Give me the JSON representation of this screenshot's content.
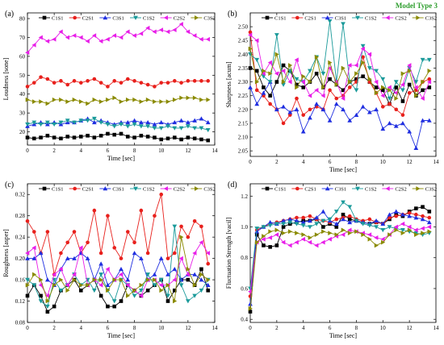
{
  "figure": {
    "annotation": "Model Type 3",
    "annotation_color": "#2e9e2e"
  },
  "series_styles": [
    {
      "name": "C1S1",
      "color": "#000000",
      "marker": "square"
    },
    {
      "name": "C2S1",
      "color": "#e8201c",
      "marker": "circle"
    },
    {
      "name": "C3S1",
      "color": "#1f2ee0",
      "marker": "triangle-up"
    },
    {
      "name": "C1S2",
      "color": "#1a9a9a",
      "marker": "triangle-down"
    },
    {
      "name": "C2S2",
      "color": "#e81ee8",
      "marker": "triangle-left"
    },
    {
      "name": "C3S2",
      "color": "#8a8a00",
      "marker": "triangle-right"
    }
  ],
  "chart_data": [
    {
      "type": "line",
      "panel": "(a)",
      "xlabel": "Time [sec]",
      "ylabel": "Loudness [sone]",
      "xlim": [
        0,
        14
      ],
      "ylim": [
        13,
        83
      ],
      "xticks": [
        0,
        2,
        4,
        6,
        8,
        10,
        12,
        14
      ],
      "yticks": [
        20,
        30,
        40,
        50,
        60,
        70,
        80
      ],
      "legend": "top",
      "x": [
        0,
        0.5,
        1,
        1.5,
        2,
        2.5,
        3,
        3.5,
        4,
        4.5,
        5,
        5.5,
        6,
        6.5,
        7,
        7.5,
        8,
        8.5,
        9,
        9.5,
        10,
        10.5,
        11,
        11.5,
        12,
        12.5,
        13,
        13.5
      ],
      "series": [
        {
          "name": "C1S1",
          "values": [
            17,
            16.5,
            17,
            18,
            17,
            16.5,
            17.5,
            17,
            17.5,
            18,
            17,
            18,
            19,
            18.5,
            19,
            17.5,
            17,
            18,
            17.5,
            17,
            16,
            16.5,
            17,
            16,
            17,
            16.5,
            16,
            15.5
          ]
        },
        {
          "name": "C2S1",
          "values": [
            44,
            46,
            49,
            48,
            46,
            47,
            45,
            47,
            46,
            47,
            48,
            46,
            44,
            47,
            46,
            48,
            47,
            46,
            45,
            44,
            46,
            46,
            47,
            46,
            47,
            47,
            47,
            47
          ]
        },
        {
          "name": "C3S1",
          "values": [
            23,
            24,
            25,
            24,
            25,
            24,
            25,
            25,
            26,
            27,
            25,
            26,
            25,
            24,
            25,
            25,
            26,
            25,
            25,
            24,
            25,
            24,
            25,
            26,
            25,
            26,
            27,
            25
          ]
        },
        {
          "name": "C1S2",
          "values": [
            24,
            25,
            24,
            25,
            24,
            25,
            26,
            25,
            26,
            26,
            27,
            25,
            24,
            23,
            24,
            23,
            24,
            23,
            23,
            22,
            22,
            23,
            22,
            22,
            23,
            22,
            22,
            21
          ]
        },
        {
          "name": "C2S2",
          "values": [
            62,
            66,
            70,
            68,
            69,
            73,
            70,
            71,
            70,
            68,
            71,
            68,
            69,
            71,
            70,
            73,
            71,
            72,
            75,
            73,
            74,
            73,
            74,
            77,
            73,
            71,
            69,
            69
          ]
        },
        {
          "name": "C3S2",
          "values": [
            37,
            36,
            36,
            35,
            37,
            37,
            36,
            37,
            36,
            35,
            37,
            36,
            37,
            38,
            36,
            37,
            37,
            36,
            37,
            36,
            36,
            36,
            37,
            38,
            38,
            38,
            37,
            37
          ]
        }
      ]
    },
    {
      "type": "line",
      "panel": "(b)",
      "xlabel": "Time [sec]",
      "ylabel": "Sharpness [acum]",
      "xlim": [
        0,
        14
      ],
      "ylim": [
        2.03,
        2.55
      ],
      "xticks": [
        0,
        2,
        4,
        6,
        8,
        10,
        12,
        14
      ],
      "yticks": [
        2.05,
        2.1,
        2.15,
        2.2,
        2.25,
        2.3,
        2.35,
        2.4,
        2.45,
        2.5
      ],
      "legend": "top",
      "x": [
        0,
        0.5,
        1,
        1.5,
        2,
        2.5,
        3,
        3.5,
        4,
        4.5,
        5,
        5.5,
        6,
        6.5,
        7,
        7.5,
        8,
        8.5,
        9,
        9.5,
        10,
        10.5,
        11,
        11.5,
        12,
        12.5,
        13,
        13.5
      ],
      "series": [
        {
          "name": "C1S1",
          "values": [
            2.35,
            2.34,
            2.28,
            2.25,
            2.3,
            2.36,
            2.34,
            2.29,
            2.28,
            2.3,
            2.33,
            2.28,
            2.31,
            2.29,
            2.27,
            2.3,
            2.31,
            2.32,
            2.3,
            2.28,
            2.27,
            2.22,
            2.28,
            2.23,
            2.29,
            2.25,
            2.27,
            2.28
          ]
        },
        {
          "name": "C2S1",
          "values": [
            2.48,
            2.27,
            2.25,
            2.22,
            2.2,
            2.15,
            2.18,
            2.24,
            2.18,
            2.2,
            2.21,
            2.2,
            2.27,
            2.24,
            2.25,
            2.28,
            2.3,
            2.39,
            2.3,
            2.26,
            2.21,
            2.22,
            2.2,
            2.18,
            2.26,
            2.27,
            2.3,
            2.31
          ]
        },
        {
          "name": "C3S1",
          "values": [
            2.28,
            2.22,
            2.26,
            2.3,
            2.2,
            2.21,
            2.19,
            2.2,
            2.12,
            2.17,
            2.22,
            2.2,
            2.16,
            2.22,
            2.2,
            2.16,
            2.18,
            2.21,
            2.19,
            2.2,
            2.13,
            2.15,
            2.14,
            2.15,
            2.12,
            2.06,
            2.16,
            2.16
          ]
        },
        {
          "name": "C1S2",
          "values": [
            2.4,
            2.38,
            2.32,
            2.3,
            2.47,
            2.29,
            2.34,
            2.31,
            2.3,
            2.34,
            2.39,
            2.33,
            2.52,
            2.3,
            2.51,
            2.3,
            2.27,
            2.43,
            2.35,
            2.34,
            2.31,
            2.24,
            2.3,
            2.27,
            2.35,
            2.3,
            2.38,
            2.38
          ]
        },
        {
          "name": "C2S2",
          "values": [
            2.47,
            2.45,
            2.33,
            2.37,
            2.33,
            2.34,
            2.3,
            2.38,
            2.3,
            2.25,
            2.27,
            2.25,
            2.35,
            2.3,
            2.24,
            2.36,
            2.36,
            2.42,
            2.4,
            2.3,
            2.25,
            2.28,
            2.26,
            2.29,
            2.36,
            2.28,
            2.24,
            2.3
          ]
        },
        {
          "name": "C3S2",
          "values": [
            2.42,
            2.3,
            2.34,
            2.33,
            2.4,
            2.3,
            2.36,
            2.28,
            2.32,
            2.3,
            2.39,
            2.28,
            2.37,
            2.29,
            2.35,
            2.3,
            2.33,
            2.37,
            2.31,
            2.26,
            2.28,
            2.27,
            2.24,
            2.33,
            2.34,
            2.25,
            2.3,
            2.34
          ]
        }
      ]
    },
    {
      "type": "line",
      "panel": "(c)",
      "xlabel": "Time [sec]",
      "ylabel": "Roughness [asper]",
      "xlim": [
        0,
        14
      ],
      "ylim": [
        0.08,
        0.34
      ],
      "xticks": [
        0,
        2,
        4,
        6,
        8,
        10,
        12,
        14
      ],
      "yticks": [
        0.08,
        0.12,
        0.16,
        0.2,
        0.24,
        0.28,
        0.32
      ],
      "legend": "top",
      "x": [
        0,
        0.5,
        1,
        1.5,
        2,
        2.5,
        3,
        3.5,
        4,
        4.5,
        5,
        5.5,
        6,
        6.5,
        7,
        7.5,
        8,
        8.5,
        9,
        9.5,
        10,
        10.5,
        11,
        11.5,
        12,
        12.5,
        13,
        13.5
      ],
      "series": [
        {
          "name": "C1S1",
          "values": [
            0.13,
            0.15,
            0.13,
            0.1,
            0.11,
            0.14,
            0.15,
            0.16,
            0.14,
            0.15,
            0.16,
            0.13,
            0.11,
            0.11,
            0.12,
            0.15,
            0.14,
            0.13,
            0.14,
            0.15,
            0.16,
            0.12,
            0.14,
            0.16,
            0.16,
            0.15,
            0.18,
            0.14
          ]
        },
        {
          "name": "C2S1",
          "values": [
            0.27,
            0.25,
            0.21,
            0.25,
            0.17,
            0.21,
            0.23,
            0.25,
            0.21,
            0.23,
            0.29,
            0.21,
            0.28,
            0.22,
            0.2,
            0.25,
            0.23,
            0.29,
            0.21,
            0.28,
            0.32,
            0.2,
            0.21,
            0.26,
            0.24,
            0.27,
            0.26,
            0.19
          ]
        },
        {
          "name": "C3S1",
          "values": [
            0.2,
            0.2,
            0.21,
            0.16,
            0.15,
            0.18,
            0.2,
            0.2,
            0.21,
            0.2,
            0.16,
            0.19,
            0.15,
            0.16,
            0.18,
            0.16,
            0.21,
            0.2,
            0.16,
            0.17,
            0.2,
            0.17,
            0.18,
            0.16,
            0.17,
            0.17,
            0.16,
            0.15
          ]
        },
        {
          "name": "C1S2",
          "values": [
            0.16,
            0.15,
            0.12,
            0.11,
            0.16,
            0.14,
            0.15,
            0.17,
            0.15,
            0.16,
            0.14,
            0.17,
            0.14,
            0.12,
            0.16,
            0.15,
            0.13,
            0.14,
            0.17,
            0.15,
            0.16,
            0.13,
            0.26,
            0.15,
            0.12,
            0.13,
            0.14,
            0.16
          ]
        },
        {
          "name": "C2S2",
          "values": [
            0.21,
            0.22,
            0.15,
            0.13,
            0.17,
            0.18,
            0.15,
            0.17,
            0.22,
            0.15,
            0.16,
            0.15,
            0.18,
            0.16,
            0.17,
            0.15,
            0.14,
            0.13,
            0.16,
            0.16,
            0.15,
            0.15,
            0.16,
            0.2,
            0.17,
            0.21,
            0.23,
            0.21
          ]
        },
        {
          "name": "C3S2",
          "values": [
            0.15,
            0.17,
            0.16,
            0.12,
            0.15,
            0.16,
            0.14,
            0.16,
            0.15,
            0.15,
            0.16,
            0.16,
            0.14,
            0.16,
            0.16,
            0.13,
            0.14,
            0.15,
            0.16,
            0.16,
            0.14,
            0.15,
            0.12,
            0.24,
            0.18,
            0.15,
            0.17,
            0.16
          ]
        }
      ]
    },
    {
      "type": "line",
      "panel": "(d)",
      "xlabel": "Time [sec]",
      "ylabel": "Fluctuation Strength [vacil]",
      "xlim": [
        0,
        14
      ],
      "ylim": [
        0.38,
        1.28
      ],
      "xticks": [
        0,
        2,
        4,
        6,
        8,
        10,
        12,
        14
      ],
      "yticks": [
        0.4,
        0.6,
        0.8,
        1.0,
        1.2
      ],
      "legend": "top",
      "x": [
        0,
        0.5,
        1,
        1.5,
        2,
        2.5,
        3,
        3.5,
        4,
        4.5,
        5,
        5.5,
        6,
        6.5,
        7,
        7.5,
        8,
        8.5,
        9,
        9.5,
        10,
        10.5,
        11,
        11.5,
        12,
        12.5,
        13,
        13.5
      ],
      "series": [
        {
          "name": "C1S1",
          "values": [
            0.45,
            0.95,
            0.88,
            0.87,
            0.88,
            1.0,
            1.02,
            1.03,
            1.04,
            1.04,
            1.05,
            1.0,
            1.02,
            1.0,
            1.08,
            1.05,
            1.04,
            1.03,
            1.02,
            1.03,
            1.02,
            1.05,
            1.08,
            1.07,
            1.1,
            1.12,
            1.13,
            1.1
          ]
        },
        {
          "name": "C2S1",
          "values": [
            0.55,
            0.98,
            1.0,
            1.02,
            1.03,
            1.04,
            1.05,
            1.06,
            1.06,
            1.07,
            1.05,
            1.04,
            1.03,
            1.05,
            1.06,
            1.07,
            1.05,
            1.04,
            1.05,
            1.03,
            1.02,
            1.06,
            1.07,
            1.08,
            1.09,
            1.08,
            1.07,
            1.06
          ]
        },
        {
          "name": "C3S1",
          "values": [
            0.5,
            0.97,
            1.0,
            1.03,
            1.02,
            1.04,
            1.05,
            1.04,
            1.03,
            1.04,
            1.06,
            1.1,
            1.04,
            1.02,
            1.05,
            1.03,
            1.04,
            1.03,
            1.02,
            1.04,
            1.02,
            1.08,
            1.1,
            1.08,
            1.07,
            1.06,
            1.05,
            1.03
          ]
        },
        {
          "name": "C1S2",
          "values": [
            0.6,
            0.99,
            1.0,
            1.01,
            1.02,
            1.02,
            1.03,
            1.02,
            1.01,
            1.0,
            1.02,
            1.04,
            1.05,
            1.1,
            1.16,
            1.13,
            1.04,
            1.02,
            1.01,
            1.0,
            0.98,
            1.0,
            0.99,
            0.98,
            0.97,
            0.96,
            0.95,
            0.96
          ]
        },
        {
          "name": "C2S2",
          "values": [
            0.58,
            0.9,
            0.92,
            0.93,
            0.95,
            0.9,
            0.88,
            0.9,
            0.92,
            0.9,
            0.88,
            0.9,
            0.92,
            0.94,
            0.95,
            0.98,
            0.97,
            0.96,
            0.95,
            0.93,
            0.92,
            0.95,
            1.0,
            1.02,
            1.0,
            0.98,
            0.99,
            1.0
          ]
        },
        {
          "name": "C3S2",
          "values": [
            0.47,
            0.9,
            0.94,
            0.97,
            0.98,
            0.96,
            0.97,
            0.96,
            0.95,
            0.93,
            0.95,
            0.97,
            0.96,
            0.95,
            0.98,
            0.96,
            0.97,
            0.95,
            0.92,
            0.88,
            0.9,
            0.95,
            0.98,
            0.96,
            0.98,
            0.95,
            0.96,
            0.97
          ]
        }
      ]
    }
  ]
}
